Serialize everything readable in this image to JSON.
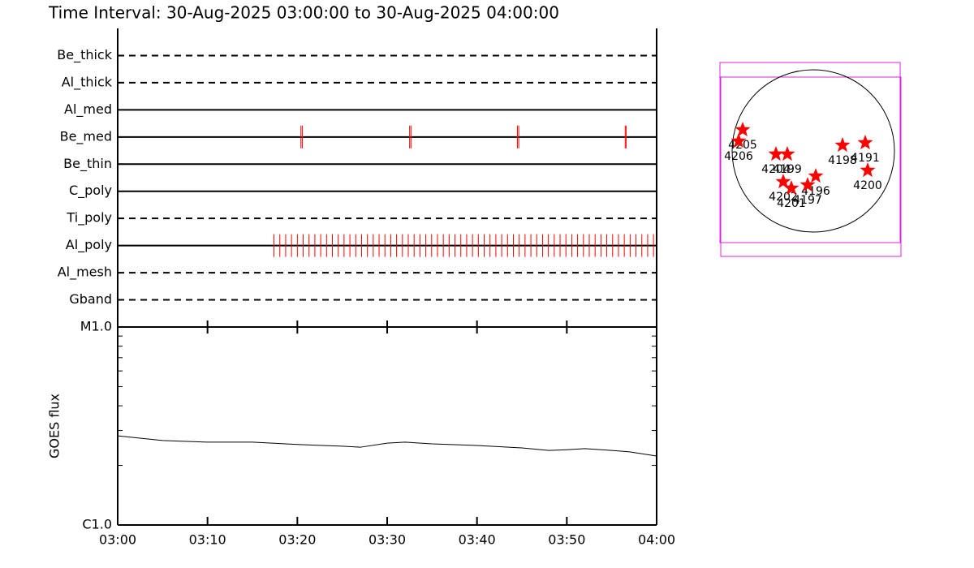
{
  "chart_data": [
    {
      "type": "timeline",
      "title": "Time Interval: 30-Aug-2025 03:00:00 to 30-Aug-2025 04:00:00",
      "mark_color": "#ff0000",
      "rows": [
        {
          "name": "Be_thick",
          "line_style": "dashed",
          "times": []
        },
        {
          "name": "Al_thick",
          "line_style": "dashed",
          "times": []
        },
        {
          "name": "Al_med",
          "line_style": "solid",
          "times": []
        },
        {
          "name": "Be_med",
          "line_style": "solid",
          "times": [
            20.4,
            20.55,
            32.5,
            32.65,
            44.5,
            44.65,
            56.5,
            56.6
          ]
        },
        {
          "name": "Be_thin",
          "line_style": "solid",
          "times": []
        },
        {
          "name": "C_poly",
          "line_style": "solid",
          "times": []
        },
        {
          "name": "Ti_poly",
          "line_style": "dashed",
          "times": []
        },
        {
          "name": "Al_poly",
          "line_style": "solid",
          "times": [
            17.4,
            18.05,
            18.7,
            19.35,
            20,
            20.65,
            21.3,
            21.95,
            22.6,
            23.25,
            23.9,
            24.55,
            25.2,
            25.85,
            26.5,
            27.15,
            27.8,
            28.45,
            29.1,
            29.75,
            30.4,
            31.05,
            31.7,
            32.35,
            33,
            33.65,
            34.3,
            34.95,
            35.6,
            36.25,
            36.9,
            37.55,
            38.2,
            38.85,
            39.5,
            40.15,
            40.8,
            41.45,
            42.1,
            42.75,
            43.4,
            44.05,
            44.7,
            45.35,
            46,
            46.65,
            47.3,
            47.95,
            48.6,
            49.25,
            49.9,
            50.55,
            51.2,
            51.85,
            52.5,
            53.15,
            53.8,
            54.45,
            55.1,
            55.75,
            56.4,
            57.05,
            57.7,
            58.35,
            59,
            59.65
          ]
        },
        {
          "name": "Al_mesh",
          "line_style": "dashed",
          "times": []
        },
        {
          "name": "Gband",
          "line_style": "dashed",
          "times": []
        }
      ]
    },
    {
      "type": "line",
      "y_label": "GOES flux",
      "log_y": true,
      "color": "#000000",
      "xlim": [
        0,
        60
      ],
      "xticks": [
        {
          "value": 0,
          "label": "03:00"
        },
        {
          "value": 10,
          "label": "03:10"
        },
        {
          "value": 20,
          "label": "03:20"
        },
        {
          "value": 30,
          "label": "03:30"
        },
        {
          "value": 40,
          "label": "03:40"
        },
        {
          "value": 50,
          "label": "03:50"
        },
        {
          "value": 60,
          "label": "04:00"
        }
      ],
      "ylim": [
        1e-06,
        1e-05
      ],
      "yticks": [
        {
          "value": 1e-06,
          "label": "C1.0"
        },
        {
          "value": 1e-05,
          "label": "M1.0"
        }
      ],
      "yminor_ticks": [
        2e-06,
        3e-06,
        4e-06,
        5e-06,
        6e-06,
        7e-06,
        8e-06,
        9e-06
      ],
      "x": [
        0,
        5,
        10,
        15,
        20,
        25,
        27,
        30,
        32,
        35,
        40,
        45,
        48,
        50,
        52,
        55,
        57,
        60
      ],
      "values": [
        2.82e-06,
        2.67e-06,
        2.62e-06,
        2.62e-06,
        2.55e-06,
        2.5e-06,
        2.47e-06,
        2.59e-06,
        2.62e-06,
        2.57e-06,
        2.52e-06,
        2.45e-06,
        2.38e-06,
        2.4e-06,
        2.43e-06,
        2.38e-06,
        2.34e-06,
        2.23e-06
      ]
    },
    {
      "type": "scatter",
      "color": "#ff0000",
      "points": [
        {
          "name": "4205",
          "x": -0.87,
          "y": 0.26
        },
        {
          "name": "4206",
          "x": -0.92,
          "y": 0.12
        },
        {
          "name": "4204",
          "x": -0.46,
          "y": -0.04
        },
        {
          "name": "4199",
          "x": -0.32,
          "y": -0.04
        },
        {
          "name": "4198",
          "x": 0.36,
          "y": 0.07
        },
        {
          "name": "4191",
          "x": 0.64,
          "y": 0.1
        },
        {
          "name": "4200",
          "x": 0.67,
          "y": -0.24
        },
        {
          "name": "4202",
          "x": -0.37,
          "y": -0.38
        },
        {
          "name": "4201",
          "x": -0.27,
          "y": -0.46
        },
        {
          "name": "4196",
          "x": 0.03,
          "y": -0.31
        },
        {
          "name": "4197",
          "x": -0.07,
          "y": -0.42
        }
      ]
    }
  ]
}
